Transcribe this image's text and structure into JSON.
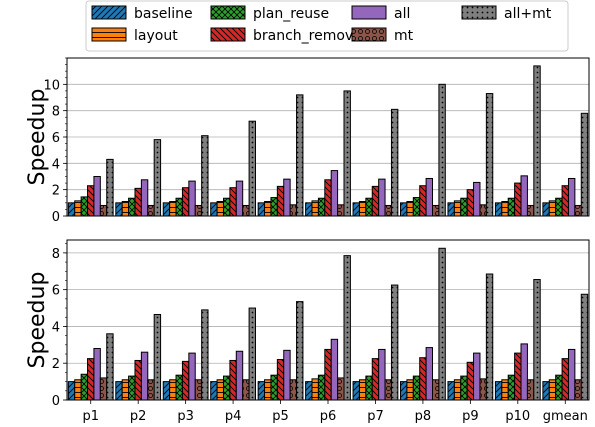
{
  "legend": {
    "columns": 4,
    "entries": [
      "baseline",
      "layout",
      "plan_reuse",
      "branch_removal",
      "all",
      "mt",
      "all+mt"
    ]
  },
  "series_style": [
    {
      "name": "baseline",
      "color": "#1f77b4",
      "hatch": "diag"
    },
    {
      "name": "layout",
      "color": "#ff7f0e",
      "hatch": "horiz"
    },
    {
      "name": "plan_reuse",
      "color": "#2ca02c",
      "hatch": "cross"
    },
    {
      "name": "branch_removal",
      "color": "#d62728",
      "hatch": "backdiag"
    },
    {
      "name": "all",
      "color": "#9467bd",
      "hatch": "none"
    },
    {
      "name": "mt",
      "color": "#8c564b",
      "hatch": "circles"
    },
    {
      "name": "all+mt",
      "color": "#7f7f7f",
      "hatch": "dots"
    }
  ],
  "chart_data": [
    {
      "type": "bar",
      "ylabel": "Speedup",
      "xlabel": "",
      "ylim": [
        0,
        12
      ],
      "yticks": [
        0,
        2,
        4,
        6,
        8,
        10
      ],
      "grid": true,
      "categories": [
        "p1",
        "p2",
        "p3",
        "p4",
        "p5",
        "p6",
        "p7",
        "p8",
        "p9",
        "p10",
        "gmean"
      ],
      "series": [
        {
          "name": "baseline",
          "values": [
            1.0,
            1.0,
            1.0,
            1.0,
            1.0,
            1.0,
            1.0,
            1.0,
            1.0,
            1.0,
            1.0
          ]
        },
        {
          "name": "layout",
          "values": [
            1.15,
            1.1,
            1.1,
            1.1,
            1.1,
            1.15,
            1.1,
            1.1,
            1.15,
            1.1,
            1.15
          ]
        },
        {
          "name": "plan_reuse",
          "values": [
            1.45,
            1.35,
            1.35,
            1.35,
            1.4,
            1.35,
            1.35,
            1.4,
            1.35,
            1.35,
            1.35
          ]
        },
        {
          "name": "branch_removal",
          "values": [
            2.3,
            2.1,
            2.15,
            2.15,
            2.25,
            2.75,
            2.25,
            2.3,
            2.0,
            2.5,
            2.3
          ]
        },
        {
          "name": "all",
          "values": [
            3.0,
            2.75,
            2.65,
            2.65,
            2.8,
            3.45,
            2.8,
            2.85,
            2.55,
            3.05,
            2.85
          ]
        },
        {
          "name": "mt",
          "values": [
            0.8,
            0.8,
            0.8,
            0.8,
            0.85,
            0.85,
            0.8,
            0.8,
            0.85,
            0.8,
            0.8
          ]
        },
        {
          "name": "all+mt",
          "values": [
            4.3,
            5.8,
            6.1,
            7.2,
            9.2,
            9.5,
            8.1,
            10.0,
            9.3,
            11.4,
            7.8
          ]
        }
      ]
    },
    {
      "type": "bar",
      "ylabel": "Speedup",
      "xlabel": "",
      "ylim": [
        0,
        8.7
      ],
      "yticks": [
        0,
        2,
        4,
        6,
        8
      ],
      "grid": true,
      "categories": [
        "p1",
        "p2",
        "p3",
        "p4",
        "p5",
        "p6",
        "p7",
        "p8",
        "p9",
        "p10",
        "gmean"
      ],
      "series": [
        {
          "name": "baseline",
          "values": [
            1.0,
            1.0,
            1.0,
            1.0,
            1.0,
            1.0,
            1.0,
            1.0,
            1.0,
            1.0,
            1.0
          ]
        },
        {
          "name": "layout",
          "values": [
            1.1,
            1.1,
            1.1,
            1.1,
            1.1,
            1.15,
            1.1,
            1.1,
            1.1,
            1.1,
            1.1
          ]
        },
        {
          "name": "plan_reuse",
          "values": [
            1.4,
            1.3,
            1.35,
            1.3,
            1.35,
            1.35,
            1.3,
            1.3,
            1.3,
            1.35,
            1.35
          ]
        },
        {
          "name": "branch_removal",
          "values": [
            2.25,
            2.15,
            2.1,
            2.15,
            2.2,
            2.75,
            2.25,
            2.3,
            2.05,
            2.55,
            2.25
          ]
        },
        {
          "name": "all",
          "values": [
            2.8,
            2.6,
            2.55,
            2.65,
            2.7,
            3.3,
            2.75,
            2.85,
            2.55,
            3.05,
            2.75
          ]
        },
        {
          "name": "mt",
          "values": [
            1.2,
            1.1,
            1.1,
            1.1,
            1.1,
            1.2,
            1.1,
            1.1,
            1.15,
            1.1,
            1.1
          ]
        },
        {
          "name": "all+mt",
          "values": [
            3.6,
            4.65,
            4.9,
            5.0,
            5.35,
            7.85,
            6.25,
            8.25,
            6.85,
            6.55,
            5.75
          ]
        }
      ]
    }
  ]
}
